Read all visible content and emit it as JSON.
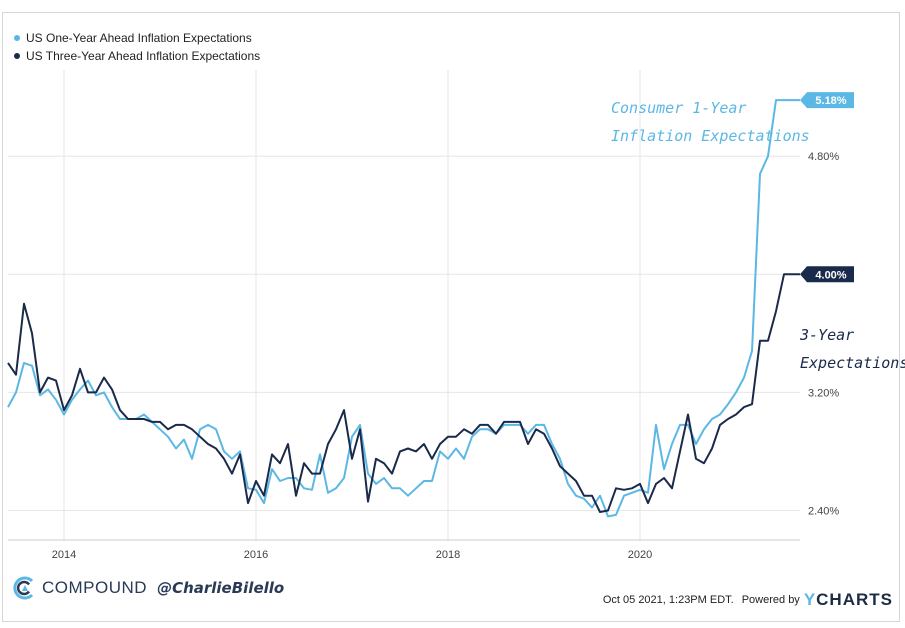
{
  "legend": {
    "one_year": "US One-Year Ahead Inflation Expectations",
    "three_year": "US Three-Year Ahead Inflation Expectations"
  },
  "colors": {
    "one_year": "#5bb8e4",
    "three_year": "#1a2a4a",
    "grid": "#e6e6e6",
    "axis_text": "#444444"
  },
  "annotations": {
    "one_year_line1": "Consumer 1-Year",
    "one_year_line2": "Inflation Expectations",
    "three_year_line1": "3-Year",
    "three_year_line2": "Expectations"
  },
  "footer": {
    "brand": "COMPOUND",
    "handle": "@CharlieBilello",
    "timestamp": "Oct 05 2021, 1:23PM EDT.",
    "powered_by": "Powered by",
    "ycharts_y": "Y",
    "ycharts_rest": "CHARTS"
  },
  "chart_data": {
    "type": "line",
    "x_ticks": [
      "2014",
      "2016",
      "2018",
      "2020"
    ],
    "y_ticks": [
      "2.40%",
      "3.20%",
      "4.00%",
      "4.80%"
    ],
    "ylim": [
      2.2,
      5.35
    ],
    "xlim": [
      "2013-06",
      "2021-09"
    ],
    "grid": true,
    "legend_position": "top-left",
    "end_labels": {
      "one_year": "5.18%",
      "three_year": "4.00%"
    },
    "series": [
      {
        "name": "US One-Year Ahead Inflation Expectations",
        "key": "one_year",
        "x": [
          "2013-06",
          "2013-07",
          "2013-08",
          "2013-09",
          "2013-10",
          "2013-11",
          "2013-12",
          "2014-01",
          "2014-02",
          "2014-03",
          "2014-04",
          "2014-05",
          "2014-06",
          "2014-07",
          "2014-08",
          "2014-09",
          "2014-10",
          "2014-11",
          "2014-12",
          "2015-01",
          "2015-02",
          "2015-03",
          "2015-04",
          "2015-05",
          "2015-06",
          "2015-07",
          "2015-08",
          "2015-09",
          "2015-10",
          "2015-11",
          "2015-12",
          "2016-01",
          "2016-02",
          "2016-03",
          "2016-04",
          "2016-05",
          "2016-06",
          "2016-07",
          "2016-08",
          "2016-09",
          "2016-10",
          "2016-11",
          "2016-12",
          "2017-01",
          "2017-02",
          "2017-03",
          "2017-04",
          "2017-05",
          "2017-06",
          "2017-07",
          "2017-08",
          "2017-09",
          "2017-10",
          "2017-11",
          "2017-12",
          "2018-01",
          "2018-02",
          "2018-03",
          "2018-04",
          "2018-05",
          "2018-06",
          "2018-07",
          "2018-08",
          "2018-09",
          "2018-10",
          "2018-11",
          "2018-12",
          "2019-01",
          "2019-02",
          "2019-03",
          "2019-04",
          "2019-05",
          "2019-06",
          "2019-07",
          "2019-08",
          "2019-09",
          "2019-10",
          "2019-11",
          "2019-12",
          "2020-01",
          "2020-02",
          "2020-03",
          "2020-04",
          "2020-05",
          "2020-06",
          "2020-07",
          "2020-08",
          "2020-09",
          "2020-10",
          "2020-11",
          "2020-12",
          "2021-01",
          "2021-02",
          "2021-03",
          "2021-04",
          "2021-05",
          "2021-06",
          "2021-07",
          "2021-08",
          "2021-09"
        ],
        "values": [
          3.1,
          3.2,
          3.4,
          3.38,
          3.18,
          3.22,
          3.15,
          3.05,
          3.15,
          3.22,
          3.28,
          3.18,
          3.2,
          3.1,
          3.02,
          3.02,
          3.02,
          3.05,
          3.0,
          2.95,
          2.9,
          2.82,
          2.88,
          2.75,
          2.95,
          2.98,
          2.95,
          2.8,
          2.75,
          2.8,
          2.55,
          2.54,
          2.45,
          2.68,
          2.6,
          2.62,
          2.62,
          2.55,
          2.54,
          2.78,
          2.52,
          2.55,
          2.62,
          2.9,
          2.98,
          2.65,
          2.58,
          2.62,
          2.55,
          2.55,
          2.5,
          2.55,
          2.6,
          2.6,
          2.8,
          2.75,
          2.82,
          2.75,
          2.9,
          2.95,
          2.95,
          2.92,
          2.98,
          2.98,
          2.98,
          2.92,
          2.98,
          2.98,
          2.85,
          2.75,
          2.58,
          2.5,
          2.48,
          2.42,
          2.5,
          2.36,
          2.37,
          2.5,
          2.52,
          2.54,
          2.52,
          2.98,
          2.68,
          2.85,
          2.98,
          2.98,
          2.85,
          2.95,
          3.02,
          3.05,
          3.12,
          3.2,
          3.3,
          3.48,
          4.68,
          4.8,
          5.18,
          5.18,
          5.18,
          5.18
        ]
      },
      {
        "name": "US Three-Year Ahead Inflation Expectations",
        "key": "three_year",
        "x": [
          "2013-06",
          "2013-07",
          "2013-08",
          "2013-09",
          "2013-10",
          "2013-11",
          "2013-12",
          "2014-01",
          "2014-02",
          "2014-03",
          "2014-04",
          "2014-05",
          "2014-06",
          "2014-07",
          "2014-08",
          "2014-09",
          "2014-10",
          "2014-11",
          "2014-12",
          "2015-01",
          "2015-02",
          "2015-03",
          "2015-04",
          "2015-05",
          "2015-06",
          "2015-07",
          "2015-08",
          "2015-09",
          "2015-10",
          "2015-11",
          "2015-12",
          "2016-01",
          "2016-02",
          "2016-03",
          "2016-04",
          "2016-05",
          "2016-06",
          "2016-07",
          "2016-08",
          "2016-09",
          "2016-10",
          "2016-11",
          "2016-12",
          "2017-01",
          "2017-02",
          "2017-03",
          "2017-04",
          "2017-05",
          "2017-06",
          "2017-07",
          "2017-08",
          "2017-09",
          "2017-10",
          "2017-11",
          "2017-12",
          "2018-01",
          "2018-02",
          "2018-03",
          "2018-04",
          "2018-05",
          "2018-06",
          "2018-07",
          "2018-08",
          "2018-09",
          "2018-10",
          "2018-11",
          "2018-12",
          "2019-01",
          "2019-02",
          "2019-03",
          "2019-04",
          "2019-05",
          "2019-06",
          "2019-07",
          "2019-08",
          "2019-09",
          "2019-10",
          "2019-11",
          "2019-12",
          "2020-01",
          "2020-02",
          "2020-03",
          "2020-04",
          "2020-05",
          "2020-06",
          "2020-07",
          "2020-08",
          "2020-09",
          "2020-10",
          "2020-11",
          "2020-12",
          "2021-01",
          "2021-02",
          "2021-03",
          "2021-04",
          "2021-05",
          "2021-06",
          "2021-07",
          "2021-08",
          "2021-09"
        ],
        "values": [
          3.4,
          3.32,
          3.8,
          3.6,
          3.2,
          3.3,
          3.28,
          3.08,
          3.18,
          3.36,
          3.2,
          3.2,
          3.3,
          3.22,
          3.08,
          3.02,
          3.02,
          3.02,
          3.0,
          3.0,
          2.95,
          2.98,
          2.98,
          2.95,
          2.9,
          2.85,
          2.82,
          2.75,
          2.65,
          2.78,
          2.45,
          2.6,
          2.5,
          2.78,
          2.72,
          2.85,
          2.5,
          2.72,
          2.65,
          2.65,
          2.85,
          2.95,
          3.08,
          2.75,
          2.95,
          2.46,
          2.75,
          2.72,
          2.65,
          2.8,
          2.82,
          2.8,
          2.85,
          2.75,
          2.85,
          2.9,
          2.9,
          2.95,
          2.92,
          2.98,
          2.98,
          2.92,
          3.0,
          3.0,
          3.0,
          2.85,
          2.95,
          2.92,
          2.82,
          2.7,
          2.65,
          2.6,
          2.5,
          2.5,
          2.39,
          2.4,
          2.55,
          2.54,
          2.55,
          2.58,
          2.45,
          2.58,
          2.62,
          2.55,
          2.8,
          3.05,
          2.75,
          2.72,
          2.82,
          2.98,
          3.02,
          3.05,
          3.1,
          3.12,
          3.55,
          3.55,
          3.75,
          4.0,
          4.0,
          4.0
        ]
      }
    ]
  }
}
